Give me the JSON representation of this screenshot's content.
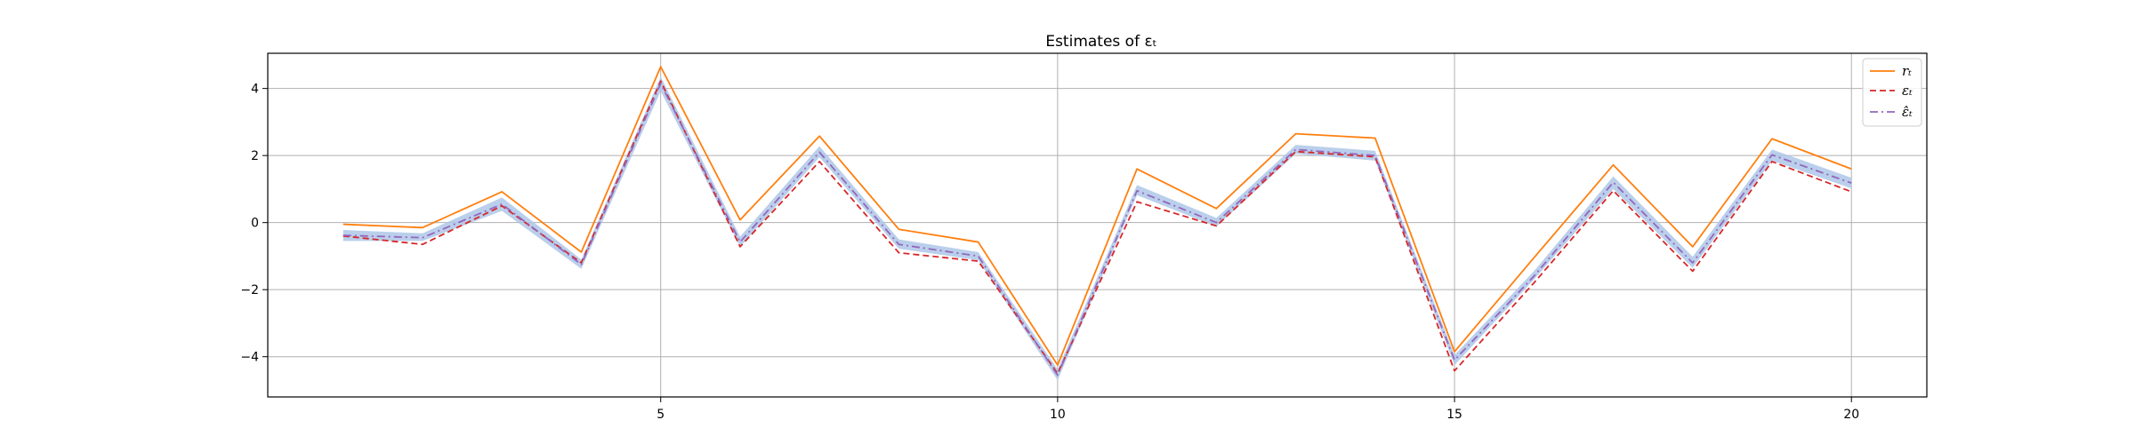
{
  "chart_data": {
    "type": "line",
    "title": "Estimates of εₜ",
    "xlabel": "",
    "ylabel": "",
    "x": [
      1,
      2,
      3,
      4,
      5,
      6,
      7,
      8,
      9,
      10,
      11,
      12,
      13,
      14,
      15,
      16,
      17,
      18,
      19,
      20
    ],
    "xlim": [
      0.05,
      20.95
    ],
    "ylim": [
      -5.2,
      5.05
    ],
    "xticks": [
      5,
      10,
      15,
      20
    ],
    "yticks": [
      -4,
      -2,
      0,
      2,
      4
    ],
    "grid": true,
    "legend_position": "top-right",
    "band": {
      "lower": [
        -0.55,
        -0.55,
        0.35,
        -1.38,
        3.92,
        -0.72,
        1.95,
        -0.78,
        -1.12,
        -4.7,
        0.82,
        -0.12,
        2.05,
        1.85,
        -4.25,
        -1.7,
        1.0,
        -1.35,
        1.85,
        1.02
      ],
      "upper": [
        -0.22,
        -0.32,
        0.75,
        -1.1,
        4.35,
        -0.42,
        2.28,
        -0.5,
        -0.88,
        -4.38,
        1.12,
        0.14,
        2.32,
        2.14,
        -3.95,
        -1.45,
        1.38,
        -1.02,
        2.18,
        1.34
      ],
      "color": "#aec7e8"
    },
    "series": [
      {
        "name": "rₜ",
        "style": "solid",
        "color": "#ff7f0e",
        "values": [
          -0.05,
          -0.15,
          0.92,
          -0.88,
          4.65,
          0.08,
          2.58,
          -0.2,
          -0.58,
          -4.25,
          1.6,
          0.42,
          2.65,
          2.52,
          -3.85,
          -1.05,
          1.72,
          -0.72,
          2.5,
          1.6
        ]
      },
      {
        "name": "εₜ",
        "style": "dashed",
        "color": "#d62728",
        "values": [
          -0.4,
          -0.65,
          0.5,
          -1.2,
          4.22,
          -0.72,
          1.82,
          -0.9,
          -1.15,
          -4.5,
          0.62,
          -0.1,
          2.12,
          1.96,
          -4.42,
          -1.8,
          0.95,
          -1.45,
          1.82,
          0.92
        ]
      },
      {
        "name": "ε̂ₜ",
        "style": "dashdot",
        "color": "#9467bd",
        "values": [
          -0.38,
          -0.45,
          0.55,
          -1.25,
          4.15,
          -0.58,
          2.1,
          -0.65,
          -1.0,
          -4.55,
          0.95,
          0.0,
          2.18,
          2.0,
          -4.1,
          -1.6,
          1.2,
          -1.2,
          2.02,
          1.18
        ]
      }
    ]
  }
}
